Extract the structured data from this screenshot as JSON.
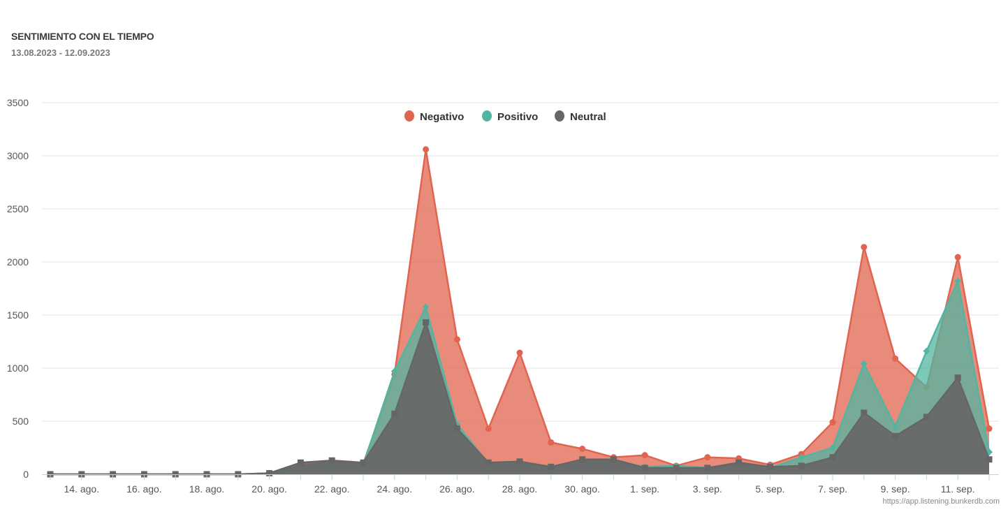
{
  "header": {
    "title": "SENTIMIENTO CON EL TIEMPO",
    "subtitle": "13.08.2023 - 12.09.2023"
  },
  "credit": "https://app.listening.bunkerdb.com",
  "chart_data": {
    "type": "area",
    "x": [
      "13.08",
      "14.08",
      "15.08",
      "16.08",
      "17.08",
      "18.08",
      "19.08",
      "20.08",
      "21.08",
      "22.08",
      "23.08",
      "24.08",
      "25.08",
      "26.08",
      "27.08",
      "28.08",
      "29.08",
      "30.08",
      "31.08",
      "01.09",
      "02.09",
      "03.09",
      "04.09",
      "05.09",
      "06.09",
      "07.09",
      "08.09",
      "09.09",
      "10.09",
      "11.09",
      "12.09"
    ],
    "x_tick_labels": [
      "14. ago.",
      "16. ago.",
      "18. ago.",
      "20. ago.",
      "22. ago.",
      "24. ago.",
      "26. ago.",
      "28. ago.",
      "30. ago.",
      "1. sep.",
      "3. sep.",
      "5. sep.",
      "7. sep.",
      "9. sep.",
      "11. sep."
    ],
    "x_tick_indices": [
      1,
      3,
      5,
      7,
      9,
      11,
      13,
      15,
      17,
      19,
      21,
      23,
      25,
      27,
      29
    ],
    "y_ticks": [
      0,
      500,
      1000,
      1500,
      2000,
      2500,
      3000,
      3500
    ],
    "ylim": [
      0,
      3500
    ],
    "grid": true,
    "legend_position": "top-center",
    "series": [
      {
        "name": "Negativo",
        "color": "#e0644f",
        "marker": "circle",
        "values": [
          0,
          0,
          0,
          0,
          0,
          0,
          0,
          10,
          80,
          120,
          100,
          940,
          3060,
          1270,
          430,
          1145,
          300,
          240,
          160,
          180,
          80,
          160,
          150,
          90,
          190,
          490,
          2140,
          1090,
          820,
          2045,
          430
        ]
      },
      {
        "name": "Positivo",
        "color": "#52b5a2",
        "marker": "diamond",
        "values": [
          0,
          0,
          0,
          0,
          0,
          0,
          0,
          10,
          60,
          100,
          90,
          970,
          1575,
          470,
          100,
          110,
          60,
          130,
          130,
          70,
          80,
          60,
          90,
          60,
          160,
          250,
          1040,
          450,
          1160,
          1820,
          210
        ]
      },
      {
        "name": "Neutral",
        "color": "#666666",
        "marker": "square",
        "values": [
          0,
          0,
          0,
          0,
          0,
          0,
          0,
          10,
          110,
          130,
          110,
          570,
          1430,
          430,
          110,
          120,
          70,
          140,
          140,
          60,
          60,
          60,
          110,
          70,
          80,
          160,
          580,
          360,
          540,
          910,
          140
        ]
      }
    ]
  }
}
